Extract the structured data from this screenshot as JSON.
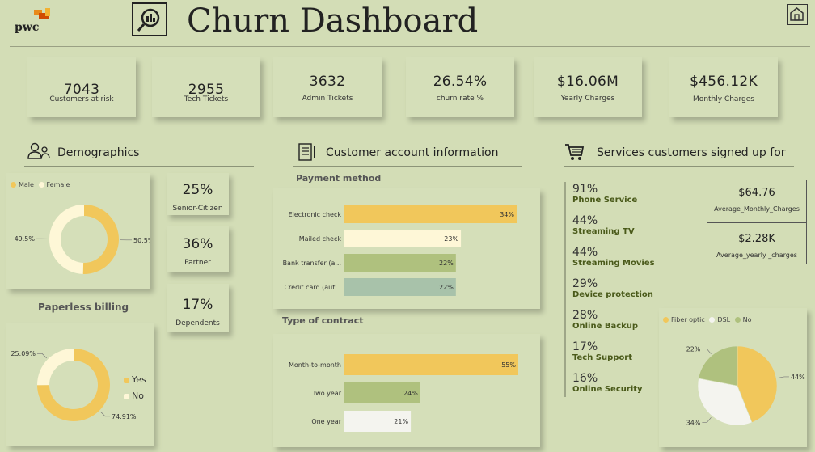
{
  "header": {
    "brand": "pwc",
    "title": "Churn Dashboard"
  },
  "colors": {
    "bg": "#d3ddb6",
    "yellow": "#f1c75b",
    "cream": "#fef7d7",
    "green": "#afc17e",
    "teal": "#a8c2aa",
    "white": "#f4f4ef",
    "dark_green": "#4a5a1a"
  },
  "kpis": [
    {
      "value": "7043",
      "label": "Customers at risk"
    },
    {
      "value": "2955",
      "label": "Tech Tickets"
    },
    {
      "value": "3632",
      "label": "Admin Tickets"
    },
    {
      "value": "26.54%",
      "label": "churn rate %"
    },
    {
      "value": "$16.06M",
      "label": "Yearly Charges"
    },
    {
      "value": "$456.12K",
      "label": "Monthly Charges"
    }
  ],
  "sections": {
    "demographics": "Demographics",
    "account": "Customer account information",
    "services": "Services customers signed up for"
  },
  "demographics": {
    "stats": [
      {
        "value": "25%",
        "label": "Senior-Citizen"
      },
      {
        "value": "36%",
        "label": "Partner"
      },
      {
        "value": "17%",
        "label": "Dependents"
      }
    ],
    "paperless_title": "Paperless billing"
  },
  "account": {
    "payment_title": "Payment method",
    "contract_title": "Type of contract"
  },
  "averages": [
    {
      "value": "$64.76",
      "label": "Average_Monthly_Charges"
    },
    {
      "value": "$2.28K",
      "label": "Average_yearly _charges"
    }
  ],
  "services": [
    {
      "pct": "91%",
      "name": "Phone Service"
    },
    {
      "pct": "44%",
      "name": "Streaming TV"
    },
    {
      "pct": "44%",
      "name": "Streaming Movies"
    },
    {
      "pct": "29%",
      "name": "Device protection"
    },
    {
      "pct": "28%",
      "name": "Online Backup"
    },
    {
      "pct": "17%",
      "name": "Tech Support"
    },
    {
      "pct": "16%",
      "name": "Online Security"
    }
  ],
  "chart_data": [
    {
      "id": "gender",
      "type": "pie",
      "variant": "donut",
      "legend": [
        "Male",
        "Female"
      ],
      "series": [
        {
          "name": "Male",
          "value": 50.5,
          "label": "50.5%",
          "color": "#f1c75b"
        },
        {
          "name": "Female",
          "value": 49.5,
          "label": "49.5%",
          "color": "#fef7d7"
        }
      ]
    },
    {
      "id": "paperless",
      "type": "pie",
      "variant": "donut",
      "title": "Paperless billing",
      "legend": [
        "Yes",
        "No"
      ],
      "series": [
        {
          "name": "Yes",
          "value": 74.91,
          "label": "74.91%",
          "color": "#f1c75b"
        },
        {
          "name": "No",
          "value": 25.09,
          "label": "25.09%",
          "color": "#fef7d7"
        }
      ]
    },
    {
      "id": "payment",
      "type": "bar",
      "orientation": "horizontal",
      "title": "Payment method",
      "categories": [
        "Electronic check",
        "Mailed check",
        "Bank transfer (a...",
        "Credit card (aut..."
      ],
      "values": [
        34,
        23,
        22,
        22
      ],
      "labels": [
        "34%",
        "23%",
        "22%",
        "22%"
      ],
      "colors": [
        "#f1c75b",
        "#fef7d7",
        "#afc17e",
        "#a8c2aa"
      ],
      "xlim": [
        0,
        34
      ]
    },
    {
      "id": "contract",
      "type": "bar",
      "orientation": "horizontal",
      "title": "Type of contract",
      "categories": [
        "Month-to-month",
        "Two year",
        "One year"
      ],
      "values": [
        55,
        24,
        21
      ],
      "labels": [
        "55%",
        "24%",
        "21%"
      ],
      "colors": [
        "#f1c75b",
        "#afc17e",
        "#f4f4ef"
      ],
      "xlim": [
        0,
        55
      ]
    },
    {
      "id": "internet",
      "type": "pie",
      "legend": [
        "Fiber optic",
        "DSL",
        "No"
      ],
      "series": [
        {
          "name": "Fiber optic",
          "value": 44,
          "label": "44%",
          "color": "#f1c75b"
        },
        {
          "name": "DSL",
          "value": 34,
          "label": "34%",
          "color": "#f4f4ef"
        },
        {
          "name": "No",
          "value": 22,
          "label": "22%",
          "color": "#afc17e"
        }
      ]
    }
  ]
}
